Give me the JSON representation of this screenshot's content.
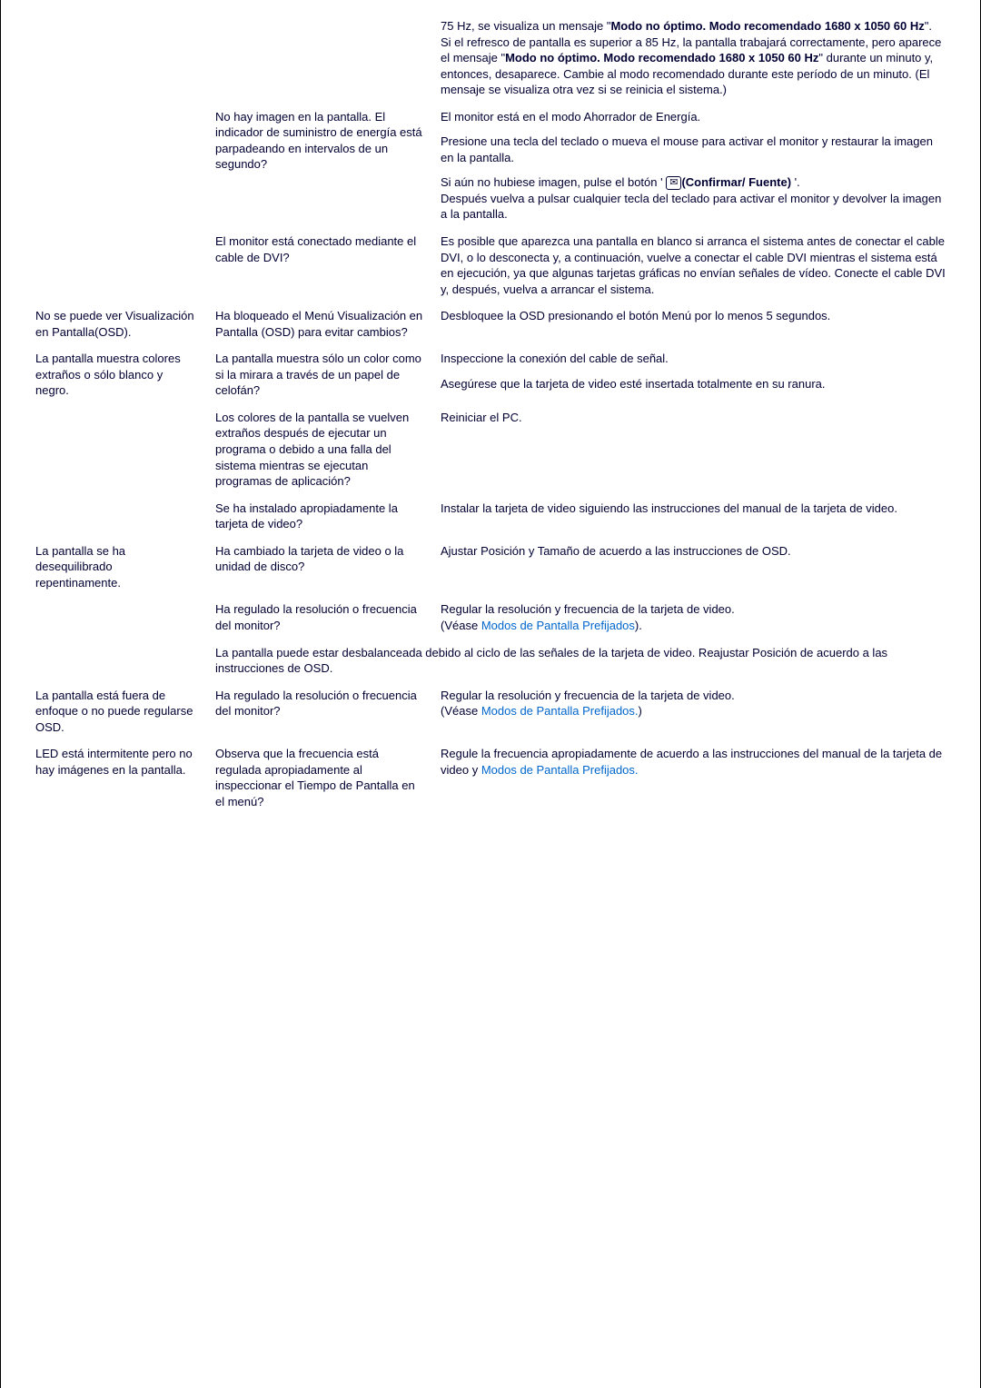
{
  "rows": [
    {
      "col3_paras": [
        "75 Hz, se visualiza un mensaje \"<b>Modo no óptimo. Modo recomendado 1680 x 1050 60 Hz</b>\". Si el refresco de pantalla es superior a 85 Hz, la pantalla trabajará correctamente, pero aparece el mensaje \"<b>Modo no óptimo. Modo recomendado 1680 x 1050 60 Hz</b>\" durante un minuto y, entonces, desaparece. Cambie al modo recomendado durante este período de un minuto. (El mensaje se visualiza otra vez si se reinicia el sistema.)"
      ]
    },
    {
      "col2": "No hay imagen en la pantalla. El indicador de suministro de energía está parpadeando en intervalos de un segundo?",
      "col3_paras": [
        "El monitor está en el modo Ahorrador de Energía.",
        "Presione una tecla del teclado o mueva el mouse para activar el monitor y restaurar la imagen en la pantalla.",
        "Si aún no hubiese imagen, pulse el botón ' <span class=\"envicon\">✉</span><b>(Confirmar/ Fuente)</b> '.<br>Después vuelva a pulsar cualquier tecla del teclado para activar el monitor y devolver la imagen a la pantalla."
      ]
    },
    {
      "col2": "El monitor está conectado mediante el cable de DVI?",
      "col3_paras": [
        "Es posible que aparezca una pantalla en blanco si arranca el sistema antes de conectar el cable DVI, o lo desconecta y, a continuación, vuelve a conectar el cable DVI mientras el sistema está en ejecución, ya que algunas tarjetas gráficas no envían señales de vídeo. Conecte el cable DVI y, después, vuelva a arrancar el sistema."
      ]
    },
    {
      "col1": "No se puede ver Visualización en Pantalla(OSD).",
      "col2": "Ha bloqueado el Menú Visualización en Pantalla (OSD) para evitar cambios?",
      "col3_paras": [
        "Desbloquee la OSD presionando el botón Menú por lo menos 5 segundos."
      ]
    },
    {
      "col1": "La pantalla muestra colores extraños o sólo blanco y negro.",
      "col2": "La pantalla muestra sólo un color como si la mirara a través de un papel de celofán?",
      "col3_paras": [
        "Inspeccione la conexión del cable de señal.",
        "Asegúrese que la tarjeta de video esté insertada totalmente en su ranura."
      ]
    },
    {
      "col2": "Los colores de la pantalla se vuelven extraños después de ejecutar un programa o debido a una falla del sistema mientras se ejecutan programas de aplicación?",
      "col3_paras": [
        "Reiniciar el PC."
      ]
    },
    {
      "col2": "Se ha instalado apropiadamente la tarjeta de video?",
      "col3_paras": [
        "Instalar la tarjeta de video siguiendo las instrucciones del manual de la tarjeta de video."
      ]
    },
    {
      "col1": "La pantalla se ha desequilibrado repentinamente.",
      "col2": "Ha cambiado la tarjeta de video o la unidad de disco?",
      "col3_paras": [
        "Ajustar Posición y Tamaño de acuerdo a las instrucciones de OSD."
      ]
    },
    {
      "col2": "Ha regulado la resolución o frecuencia del monitor?",
      "col3_paras": [
        "Regular la resolución y frecuencia de la tarjeta de video.<br>(Véase <a class=\"link\" href=\"#\">Modos de Pantalla Prefijados</a>)."
      ]
    },
    {
      "span23": "La pantalla puede estar desbalanceada debido al ciclo de las señales de la tarjeta de video. Reajustar Posición de acuerdo a las instrucciones de OSD."
    },
    {
      "col1": "La pantalla está fuera de enfoque o no puede regularse OSD.",
      "col2": "Ha regulado la resolución o frecuencia del monitor?",
      "col3_paras": [
        "Regular la resolución y frecuencia de la tarjeta de video.<br>(Véase <a class=\"link\" href=\"#\">Modos de Pantalla Prefijados.</a>)"
      ]
    },
    {
      "col1": "LED está intermitente pero no hay imágenes en la pantalla.",
      "col2": "Observa que la frecuencia está regulada apropiadamente al inspeccionar el Tiempo de Pantalla en el menú?",
      "col3_paras": [
        "Regule la frecuencia apropiadamente de acuerdo a las instrucciones del manual de la tarjeta de video y <a class=\"link\" href=\"#\">Modos de Pantalla Prefijados.</a>"
      ]
    }
  ]
}
